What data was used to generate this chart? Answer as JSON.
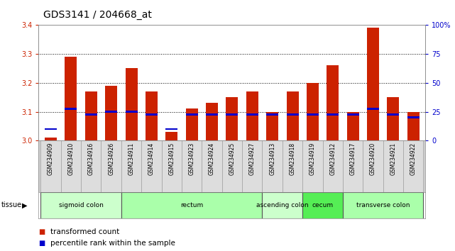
{
  "title": "GDS3141 / 204668_at",
  "samples": [
    "GSM234909",
    "GSM234910",
    "GSM234916",
    "GSM234926",
    "GSM234911",
    "GSM234914",
    "GSM234915",
    "GSM234923",
    "GSM234924",
    "GSM234925",
    "GSM234927",
    "GSM234913",
    "GSM234918",
    "GSM234919",
    "GSM234912",
    "GSM234917",
    "GSM234920",
    "GSM234921",
    "GSM234922"
  ],
  "red_values": [
    3.01,
    3.29,
    3.17,
    3.19,
    3.25,
    3.17,
    3.03,
    3.11,
    3.13,
    3.15,
    3.17,
    3.1,
    3.17,
    3.2,
    3.26,
    3.1,
    3.39,
    3.15,
    3.1
  ],
  "blue_values": [
    3.04,
    3.11,
    3.09,
    3.1,
    3.1,
    3.09,
    3.04,
    3.09,
    3.09,
    3.09,
    3.09,
    3.09,
    3.09,
    3.09,
    3.09,
    3.09,
    3.11,
    3.09,
    3.08
  ],
  "ymin": 3.0,
  "ymax": 3.4,
  "y2min": 0,
  "y2max": 100,
  "yticks": [
    3.0,
    3.1,
    3.2,
    3.3,
    3.4
  ],
  "y2ticks": [
    0,
    25,
    50,
    75,
    100
  ],
  "tissue_groups": [
    {
      "label": "sigmoid colon",
      "start": 0,
      "end": 4,
      "color": "#ccffcc"
    },
    {
      "label": "rectum",
      "start": 4,
      "end": 11,
      "color": "#aaffaa"
    },
    {
      "label": "ascending colon",
      "start": 11,
      "end": 13,
      "color": "#ccffcc"
    },
    {
      "label": "cecum",
      "start": 13,
      "end": 15,
      "color": "#55ee55"
    },
    {
      "label": "transverse colon",
      "start": 15,
      "end": 19,
      "color": "#aaffaa"
    }
  ],
  "bar_color": "#cc2200",
  "blue_color": "#0000cc",
  "bg_color": "#ffffff",
  "tick_label_color": "#cc2200",
  "y2_label_color": "#0000cc",
  "title_fontsize": 10,
  "axis_fontsize": 7,
  "sample_fontsize": 5.5,
  "tissue_fontsize": 6.5,
  "legend_fontsize": 7.5
}
